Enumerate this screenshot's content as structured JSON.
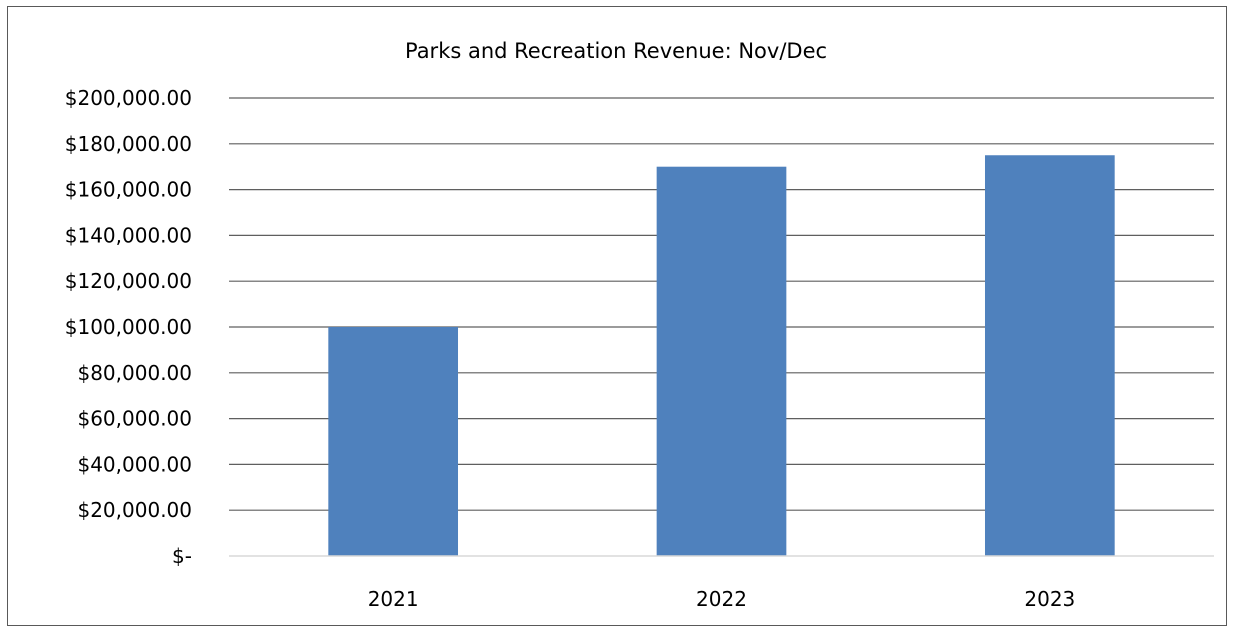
{
  "chart_data": {
    "type": "bar",
    "title": "Parks and Recreation Revenue: Nov/Dec",
    "xlabel": "",
    "ylabel": "",
    "categories": [
      "2021",
      "2022",
      "2023"
    ],
    "values": [
      100000,
      170000,
      175000
    ],
    "ylim": [
      0,
      200000
    ],
    "yticks": [
      0,
      20000,
      40000,
      60000,
      80000,
      100000,
      120000,
      140000,
      160000,
      180000,
      200000
    ],
    "ytick_labels": [
      "$-",
      "$20,000.00",
      "$40,000.00",
      "$60,000.00",
      "$80,000.00",
      "$100,000.00",
      "$120,000.00",
      "$140,000.00",
      "$160,000.00",
      "$180,000.00",
      "$200,000.00"
    ],
    "grid": true,
    "legend": "none",
    "colors": {
      "bar": "#4f81bd",
      "gridline": "#5f5f5f",
      "axis": "#d9d9d9"
    }
  }
}
